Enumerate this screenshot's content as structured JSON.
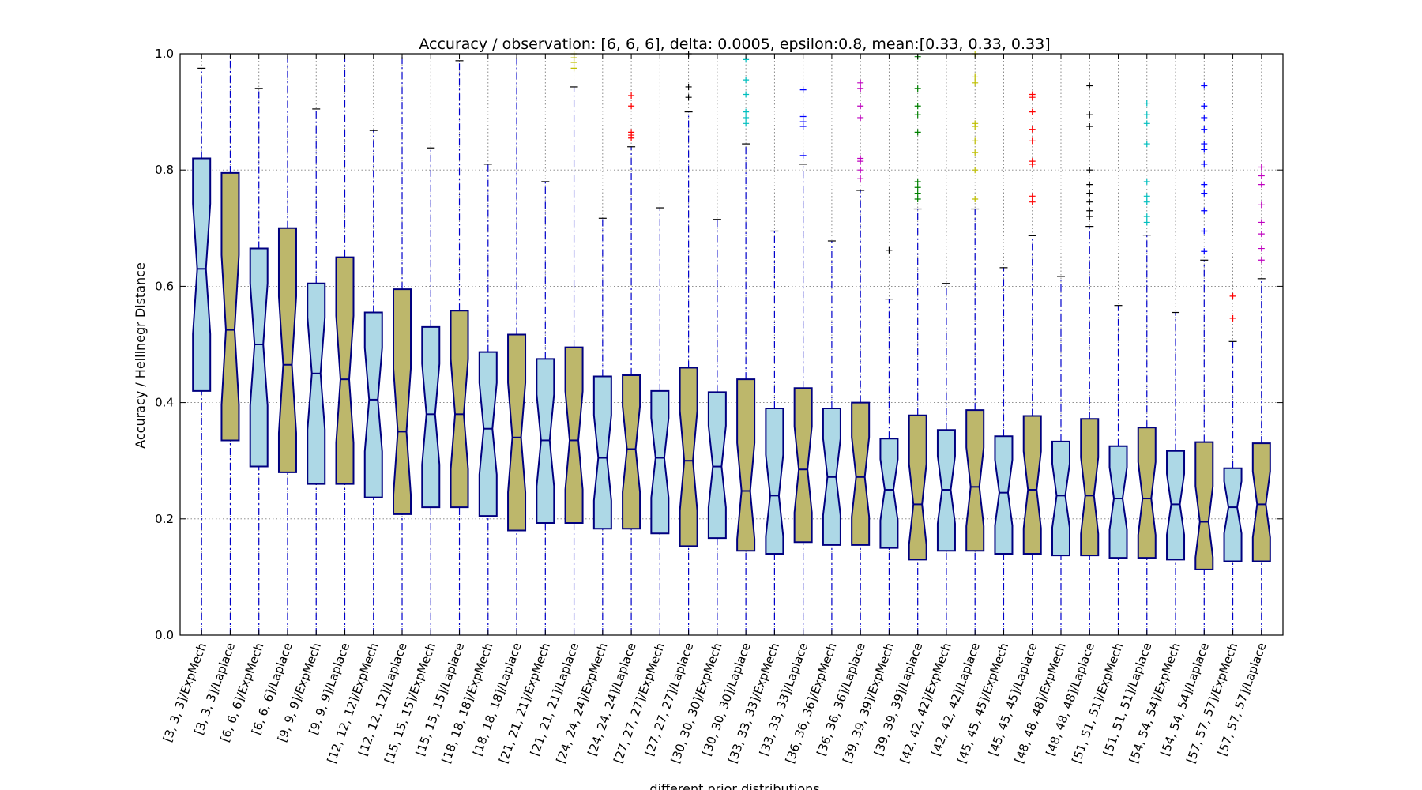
{
  "chart_data": {
    "type": "boxplot",
    "title": "Accuracy / observation: [6, 6, 6], delta: 0.0005, epsilon:0.8, mean:[0.33, 0.33, 0.33]",
    "xlabel": "different prior distributions",
    "ylabel": "Accuracy / Hellinegr Distance",
    "ylim": [
      0.0,
      1.0
    ],
    "yticks": [
      "0.0",
      "0.2",
      "0.4",
      "0.6",
      "0.8",
      "1.0"
    ],
    "grid": true,
    "colors": {
      "ExpMech": "#add8e6",
      "Laplace": "#bdb76b",
      "edge": "#000080",
      "whisker": "#0000cc"
    },
    "boxes": [
      {
        "label": "[3, 3, 3]/ExpMech",
        "q1": 0.42,
        "median": 0.63,
        "q3": 0.82,
        "whislo": 0.0,
        "whishi": 0.975,
        "fliers": [],
        "fc": ""
      },
      {
        "label": "[3, 3, 3]/Laplace",
        "q1": 0.335,
        "median": 0.525,
        "q3": 0.795,
        "whislo": 0.0,
        "whishi": 1.0,
        "fliers": [],
        "fc": ""
      },
      {
        "label": "[6, 6, 6]/ExpMech",
        "q1": 0.29,
        "median": 0.5,
        "q3": 0.665,
        "whislo": 0.0,
        "whishi": 0.94,
        "fliers": [],
        "fc": ""
      },
      {
        "label": "[6, 6, 6]/Laplace",
        "q1": 0.28,
        "median": 0.465,
        "q3": 0.7,
        "whislo": 0.0,
        "whishi": 1.0,
        "fliers": [],
        "fc": ""
      },
      {
        "label": "[9, 9, 9]/ExpMech",
        "q1": 0.26,
        "median": 0.45,
        "q3": 0.605,
        "whislo": 0.0,
        "whishi": 0.905,
        "fliers": [],
        "fc": ""
      },
      {
        "label": "[9, 9, 9]/Laplace",
        "q1": 0.26,
        "median": 0.44,
        "q3": 0.65,
        "whislo": 0.0,
        "whishi": 1.0,
        "fliers": [],
        "fc": ""
      },
      {
        "label": "[12, 12, 12]/ExpMech",
        "q1": 0.237,
        "median": 0.405,
        "q3": 0.555,
        "whislo": 0.0,
        "whishi": 0.868,
        "fliers": [],
        "fc": ""
      },
      {
        "label": "[12, 12, 12]/Laplace",
        "q1": 0.208,
        "median": 0.35,
        "q3": 0.595,
        "whislo": 0.0,
        "whishi": 1.0,
        "fliers": [],
        "fc": ""
      },
      {
        "label": "[15, 15, 15]/ExpMech",
        "q1": 0.22,
        "median": 0.38,
        "q3": 0.53,
        "whislo": 0.0,
        "whishi": 0.838,
        "fliers": [],
        "fc": ""
      },
      {
        "label": "[15, 15, 15]/Laplace",
        "q1": 0.22,
        "median": 0.38,
        "q3": 0.558,
        "whislo": 0.0,
        "whishi": 0.988,
        "fliers": [],
        "fc": ""
      },
      {
        "label": "[18, 18, 18]/ExpMech",
        "q1": 0.205,
        "median": 0.355,
        "q3": 0.487,
        "whislo": 0.0,
        "whishi": 0.81,
        "fliers": [],
        "fc": ""
      },
      {
        "label": "[18, 18, 18]/Laplace",
        "q1": 0.18,
        "median": 0.34,
        "q3": 0.517,
        "whislo": 0.0,
        "whishi": 1.0,
        "fliers": [],
        "fc": ""
      },
      {
        "label": "[21, 21, 21]/ExpMech",
        "q1": 0.193,
        "median": 0.335,
        "q3": 0.475,
        "whislo": 0.0,
        "whishi": 0.78,
        "fliers": [],
        "fc": ""
      },
      {
        "label": "[21, 21, 21]/Laplace",
        "q1": 0.193,
        "median": 0.335,
        "q3": 0.495,
        "whislo": 0.0,
        "whishi": 0.943,
        "fliers": [
          0.975,
          0.985,
          0.993,
          1.0
        ],
        "fc": "#bfbf00"
      },
      {
        "label": "[24, 24, 24]/ExpMech",
        "q1": 0.183,
        "median": 0.305,
        "q3": 0.445,
        "whislo": 0.0,
        "whishi": 0.717,
        "fliers": [],
        "fc": ""
      },
      {
        "label": "[24, 24, 24]/Laplace",
        "q1": 0.183,
        "median": 0.32,
        "q3": 0.447,
        "whislo": 0.0,
        "whishi": 0.84,
        "fliers": [
          0.855,
          0.86,
          0.865,
          0.91,
          0.928
        ],
        "fc": "#ff0000"
      },
      {
        "label": "[27, 27, 27]/ExpMech",
        "q1": 0.175,
        "median": 0.305,
        "q3": 0.42,
        "whislo": 0.0,
        "whishi": 0.735,
        "fliers": [],
        "fc": ""
      },
      {
        "label": "[27, 27, 27]/Laplace",
        "q1": 0.153,
        "median": 0.3,
        "q3": 0.46,
        "whislo": 0.0,
        "whishi": 0.9,
        "fliers": [
          0.925,
          0.943,
          1.0
        ],
        "fc": "#000000"
      },
      {
        "label": "[30, 30, 30]/ExpMech",
        "q1": 0.167,
        "median": 0.29,
        "q3": 0.418,
        "whislo": 0.0,
        "whishi": 0.715,
        "fliers": [],
        "fc": ""
      },
      {
        "label": "[30, 30, 30]/Laplace",
        "q1": 0.145,
        "median": 0.248,
        "q3": 0.44,
        "whislo": 0.0,
        "whishi": 0.845,
        "fliers": [
          0.88,
          0.89,
          0.9,
          0.93,
          0.955,
          0.99
        ],
        "fc": "#00bfbf"
      },
      {
        "label": "[33, 33, 33]/ExpMech",
        "q1": 0.14,
        "median": 0.24,
        "q3": 0.39,
        "whislo": 0.0,
        "whishi": 0.695,
        "fliers": [],
        "fc": ""
      },
      {
        "label": "[33, 33, 33]/Laplace",
        "q1": 0.16,
        "median": 0.285,
        "q3": 0.425,
        "whislo": 0.0,
        "whishi": 0.81,
        "fliers": [
          0.825,
          0.875,
          0.883,
          0.892,
          0.938
        ],
        "fc": "#0000ff"
      },
      {
        "label": "[36, 36, 36]/ExpMech",
        "q1": 0.155,
        "median": 0.272,
        "q3": 0.39,
        "whislo": 0.0,
        "whishi": 0.678,
        "fliers": [],
        "fc": ""
      },
      {
        "label": "[36, 36, 36]/Laplace",
        "q1": 0.155,
        "median": 0.272,
        "q3": 0.4,
        "whislo": 0.0,
        "whishi": 0.765,
        "fliers": [
          0.785,
          0.8,
          0.815,
          0.82,
          0.89,
          0.91,
          0.94,
          0.95
        ],
        "fc": "#bf00bf"
      },
      {
        "label": "[39, 39, 39]/ExpMech",
        "q1": 0.15,
        "median": 0.25,
        "q3": 0.338,
        "whislo": 0.0,
        "whishi": 0.578,
        "fliers": [
          0.662
        ],
        "fc": "#000000"
      },
      {
        "label": "[39, 39, 39]/Laplace",
        "q1": 0.13,
        "median": 0.225,
        "q3": 0.378,
        "whislo": 0.0,
        "whishi": 0.733,
        "fliers": [
          0.75,
          0.76,
          0.77,
          0.78,
          0.865,
          0.895,
          0.91,
          0.94,
          0.995
        ],
        "fc": "#008000"
      },
      {
        "label": "[42, 42, 42]/ExpMech",
        "q1": 0.145,
        "median": 0.25,
        "q3": 0.353,
        "whislo": 0.0,
        "whishi": 0.605,
        "fliers": [],
        "fc": ""
      },
      {
        "label": "[42, 42, 42]/Laplace",
        "q1": 0.145,
        "median": 0.255,
        "q3": 0.387,
        "whislo": 0.0,
        "whishi": 0.733,
        "fliers": [
          0.75,
          0.8,
          0.83,
          0.85,
          0.875,
          0.88,
          0.95,
          0.96,
          1.0
        ],
        "fc": "#bfbf00"
      },
      {
        "label": "[45, 45, 45]/ExpMech",
        "q1": 0.14,
        "median": 0.245,
        "q3": 0.342,
        "whislo": 0.0,
        "whishi": 0.632,
        "fliers": [],
        "fc": ""
      },
      {
        "label": "[45, 45, 45]/Laplace",
        "q1": 0.14,
        "median": 0.25,
        "q3": 0.377,
        "whislo": 0.0,
        "whishi": 0.687,
        "fliers": [
          0.745,
          0.755,
          0.81,
          0.815,
          0.85,
          0.87,
          0.9,
          0.925,
          0.93
        ],
        "fc": "#ff0000"
      },
      {
        "label": "[48, 48, 48]/ExpMech",
        "q1": 0.137,
        "median": 0.24,
        "q3": 0.333,
        "whislo": 0.0,
        "whishi": 0.617,
        "fliers": [],
        "fc": ""
      },
      {
        "label": "[48, 48, 48]/Laplace",
        "q1": 0.137,
        "median": 0.24,
        "q3": 0.372,
        "whislo": 0.0,
        "whishi": 0.703,
        "fliers": [
          0.72,
          0.73,
          0.745,
          0.76,
          0.775,
          0.8,
          0.875,
          0.895,
          0.945
        ],
        "fc": "#000000"
      },
      {
        "label": "[51, 51, 51]/ExpMech",
        "q1": 0.133,
        "median": 0.235,
        "q3": 0.325,
        "whislo": 0.0,
        "whishi": 0.567,
        "fliers": [],
        "fc": ""
      },
      {
        "label": "[51, 51, 51]/Laplace",
        "q1": 0.133,
        "median": 0.235,
        "q3": 0.357,
        "whislo": 0.0,
        "whishi": 0.688,
        "fliers": [
          0.71,
          0.72,
          0.745,
          0.755,
          0.78,
          0.845,
          0.88,
          0.895,
          0.915
        ],
        "fc": "#00bfbf"
      },
      {
        "label": "[54, 54, 54]/ExpMech",
        "q1": 0.13,
        "median": 0.225,
        "q3": 0.317,
        "whislo": 0.0,
        "whishi": 0.555,
        "fliers": [],
        "fc": ""
      },
      {
        "label": "[54, 54, 54]/Laplace",
        "q1": 0.113,
        "median": 0.195,
        "q3": 0.332,
        "whislo": 0.0,
        "whishi": 0.645,
        "fliers": [
          0.66,
          0.695,
          0.73,
          0.76,
          0.775,
          0.81,
          0.835,
          0.845,
          0.87,
          0.89,
          0.91,
          0.945
        ],
        "fc": "#0000ff"
      },
      {
        "label": "[57, 57, 57]/ExpMech",
        "q1": 0.127,
        "median": 0.22,
        "q3": 0.287,
        "whislo": 0.0,
        "whishi": 0.505,
        "fliers": [
          0.545,
          0.583
        ],
        "fc": "#ff0000"
      },
      {
        "label": "[57, 57, 57]/Laplace",
        "q1": 0.127,
        "median": 0.225,
        "q3": 0.33,
        "whislo": 0.0,
        "whishi": 0.613,
        "fliers": [
          0.645,
          0.665,
          0.69,
          0.71,
          0.74,
          0.775,
          0.79,
          0.805
        ],
        "fc": "#bf00bf"
      }
    ]
  }
}
